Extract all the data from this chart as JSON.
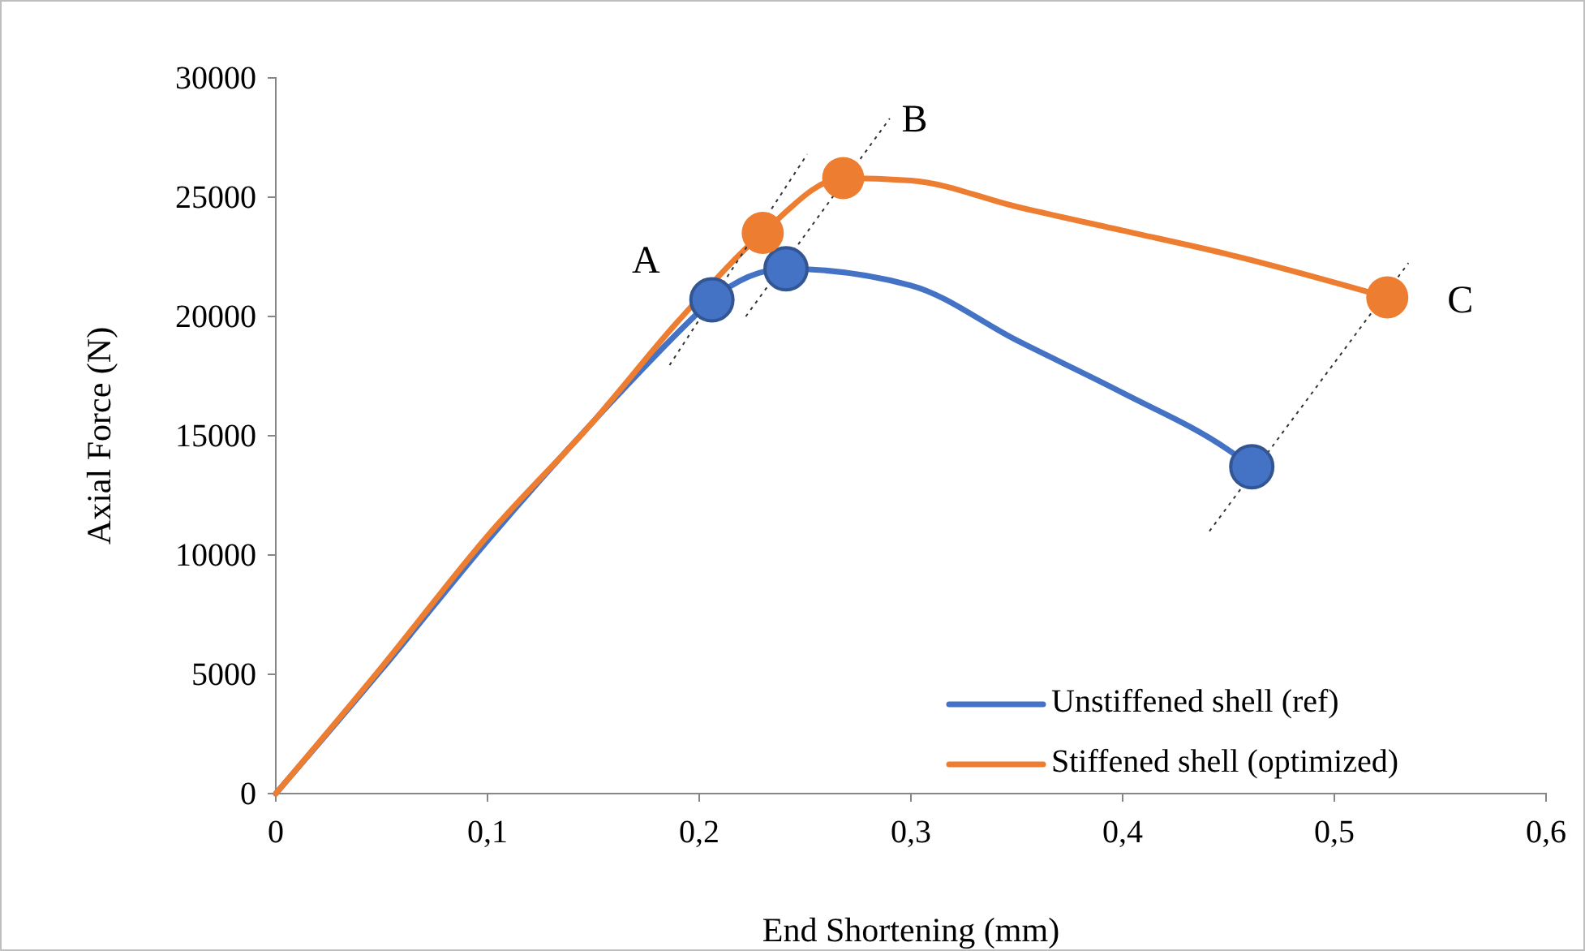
{
  "chart_data": {
    "type": "line",
    "xlabel": "End Shortening (mm)",
    "ylabel": "Axial Force (N)",
    "xlim": [
      0,
      0.6
    ],
    "xticks": [
      0,
      {
        "value": 0.1,
        "label": "0,1"
      },
      {
        "value": 0.2,
        "label": "0,2"
      },
      {
        "value": 0.3,
        "label": "0,3"
      },
      {
        "value": 0.4,
        "label": "0,4"
      },
      {
        "value": 0.5,
        "label": "0,5"
      },
      {
        "value": 0.6,
        "label": "0,6"
      }
    ],
    "ylim": [
      0,
      30000
    ],
    "yticks": [
      0,
      5000,
      10000,
      15000,
      20000,
      25000,
      30000
    ],
    "grid": false,
    "legend": "bottom right",
    "line_style": "solid",
    "series": [
      {
        "name": "Unstiffened shell (ref)",
        "color": "#4472c4",
        "x": [
          0,
          0.05,
          0.1,
          0.15,
          0.2,
          0.206,
          0.241,
          0.3,
          0.35,
          0.4,
          0.45,
          0.461
        ],
        "values": [
          0,
          5200,
          10600,
          15600,
          20200,
          20700,
          22000,
          21300,
          19000,
          16800,
          14400,
          13700
        ]
      },
      {
        "name": "Stiffened shell (optimized)",
        "color": "#ed7d31",
        "x": [
          0,
          0.05,
          0.1,
          0.15,
          0.19,
          0.23,
          0.268,
          0.3,
          0.35,
          0.4,
          0.45,
          0.525
        ],
        "values": [
          0,
          5300,
          10800,
          15600,
          19800,
          23500,
          25800,
          25700,
          24600,
          23600,
          22600,
          20800
        ]
      },
      {
        "type": "line",
        "line_style": "dotted",
        "color": "#333333",
        "x": [
          0.186,
          0.251
        ],
        "values": [
          17960,
          26800
        ]
      },
      {
        "type": "line",
        "line_style": "dotted",
        "color": "#333333",
        "x": [
          0.222,
          0.29
        ],
        "values": [
          20000,
          28300
        ]
      },
      {
        "type": "line",
        "line_style": "dotted",
        "color": "#333333",
        "x": [
          0.441,
          0.535
        ],
        "values": [
          11000,
          22240
        ]
      },
      {
        "type": "scatter",
        "marker": "circle",
        "color": "#4472c4",
        "x": [
          0.206,
          0.241,
          0.461
        ],
        "values": [
          20700,
          22000,
          13700
        ]
      },
      {
        "type": "scatter",
        "marker": "circle",
        "color": "#ed7d31",
        "x": [
          0.23,
          0.268,
          0.525
        ],
        "values": [
          23500,
          25800,
          20800
        ]
      }
    ],
    "annotations": [
      "A",
      "B",
      "C"
    ]
  }
}
